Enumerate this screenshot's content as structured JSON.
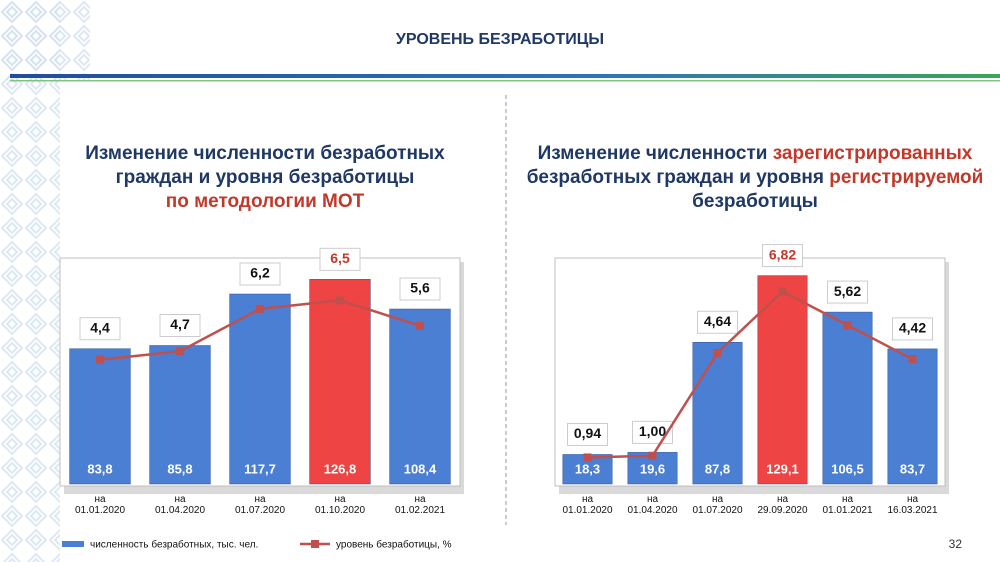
{
  "header": {
    "title": "УРОВЕНЬ БЕЗРАБОТИЦЫ",
    "page_number": "32"
  },
  "chart_data": [
    {
      "type": "bar",
      "title_parts": [
        {
          "text": "Изменение численности безработных граждан и уровня безработицы",
          "color": "#1f3864"
        },
        {
          "text": "по методологии МОТ",
          "color": "#c0392b"
        }
      ],
      "categories": [
        "на\n01.01.2020",
        "на\n01.04.2020",
        "на\n01.07.2020",
        "на\n01.10.2020",
        "на\n01.02.2021"
      ],
      "ylim": [
        0,
        140
      ],
      "y2lim": [
        0,
        8
      ],
      "series": [
        {
          "name": "численность безработных, тыс. чел.",
          "type": "bar",
          "color": "#4a7fd4",
          "colors": [
            "#4a7fd4",
            "#4a7fd4",
            "#4a7fd4",
            "#ee4444",
            "#4a7fd4"
          ],
          "values": [
            83.8,
            85.8,
            117.7,
            126.8,
            108.4
          ],
          "value_labels": [
            "83,8",
            "85,8",
            "117,7",
            "126,8",
            "108,4"
          ]
        },
        {
          "name": "уровень безработицы, %",
          "type": "line",
          "axis": "y2",
          "color": "#c0504d",
          "label_colors": [
            "#111111",
            "#111111",
            "#111111",
            "#c0392b",
            "#111111"
          ],
          "values": [
            4.4,
            4.7,
            6.2,
            6.5,
            5.6
          ],
          "value_labels": [
            "4,4",
            "4,7",
            "6,2",
            "6,5",
            "5,6"
          ]
        }
      ]
    },
    {
      "type": "bar",
      "title_parts": [
        {
          "text": "Изменение численности ",
          "color": "#1f3864"
        },
        {
          "text": "зарегистрированных",
          "color": "#c0392b"
        },
        {
          "text": " безработных граждан и уровня ",
          "color": "#1f3864"
        },
        {
          "text": "регистрируемой",
          "color": "#c0392b"
        },
        {
          "text": " безработицы",
          "color": "#1f3864"
        }
      ],
      "categories": [
        "на\n01.01.2020",
        "на\n01.04.2020",
        "на\n01.07.2020",
        "на\n29.09.2020",
        "на\n01.01.2021",
        "на\n16.03.2021"
      ],
      "ylim": [
        0,
        140
      ],
      "y2lim": [
        0,
        8
      ],
      "series": [
        {
          "type": "bar",
          "color": "#4a7fd4",
          "colors": [
            "#4a7fd4",
            "#4a7fd4",
            "#4a7fd4",
            "#ee4444",
            "#4a7fd4",
            "#4a7fd4"
          ],
          "values": [
            18.3,
            19.6,
            87.8,
            129.1,
            106.5,
            83.7
          ],
          "value_labels": [
            "18,3",
            "19,6",
            "87,8",
            "129,1",
            "106,5",
            "83,7"
          ]
        },
        {
          "type": "line",
          "axis": "y2",
          "color": "#c0504d",
          "label_colors": [
            "#111111",
            "#111111",
            "#111111",
            "#c0392b",
            "#111111",
            "#111111"
          ],
          "values": [
            0.94,
            1.0,
            4.64,
            6.82,
            5.62,
            4.42
          ],
          "value_labels": [
            "0,94",
            "1,00",
            "4,64",
            "6,82",
            "5,62",
            "4,42"
          ]
        }
      ]
    }
  ]
}
